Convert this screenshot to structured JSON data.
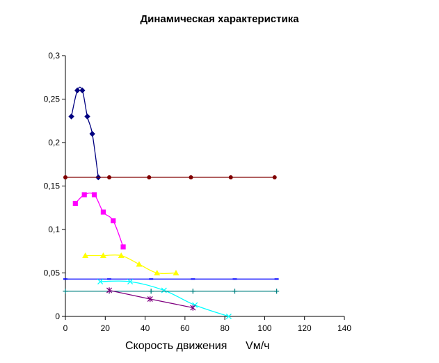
{
  "chart_data": {
    "type": "scatter",
    "title": "Динамическая характеристика",
    "xlabel": "Скорость движения      Vм/ч",
    "ylabel": "",
    "xlim": [
      0,
      140
    ],
    "ylim": [
      0,
      0.3
    ],
    "xticks": [
      "0",
      "20",
      "40",
      "60",
      "80",
      "100",
      "120",
      "140"
    ],
    "yticks": [
      "0",
      "0,05",
      "0,1",
      "0,15",
      "0,2",
      "0,25",
      "0,3"
    ],
    "grid": false,
    "legend": "none",
    "series": [
      {
        "color": "#000080",
        "marker": "diamond",
        "smooth": true,
        "x": [
          3,
          6,
          8.5,
          11,
          13.5,
          16.5
        ],
        "y": [
          0.23,
          0.26,
          0.26,
          0.23,
          0.21,
          0.16
        ]
      },
      {
        "color": "#800000",
        "marker": "circle",
        "smooth": false,
        "x": [
          0,
          22,
          42,
          63,
          83,
          105
        ],
        "y": [
          0.16,
          0.16,
          0.16,
          0.16,
          0.16,
          0.16
        ]
      },
      {
        "color": "#ff00ff",
        "marker": "square",
        "smooth": true,
        "x": [
          5,
          9.5,
          14.5,
          19,
          24,
          29
        ],
        "y": [
          0.13,
          0.14,
          0.14,
          0.12,
          0.11,
          0.08
        ]
      },
      {
        "color": "#ffff00",
        "marker": "triangle",
        "smooth": true,
        "x": [
          10,
          19,
          28,
          37,
          46,
          55.5
        ],
        "y": [
          0.07,
          0.07,
          0.07,
          0.06,
          0.05,
          0.05
        ]
      },
      {
        "color": "#0000ff",
        "marker": "dash",
        "smooth": false,
        "x": [
          0,
          22,
          43,
          64,
          85,
          106
        ],
        "y": [
          0.043,
          0.043,
          0.043,
          0.043,
          0.043,
          0.043
        ]
      },
      {
        "color": "#00ffff",
        "marker": "x",
        "smooth": true,
        "x": [
          17.5,
          32.5,
          49.5,
          65,
          82
        ],
        "y": [
          0.04,
          0.04,
          0.03,
          0.013,
          0
        ]
      },
      {
        "color": "#008080",
        "marker": "plus",
        "smooth": false,
        "x": [
          0,
          22,
          43,
          64,
          85,
          106
        ],
        "y": [
          0.029,
          0.029,
          0.029,
          0.029,
          0.029,
          0.029
        ]
      },
      {
        "color": "#800080",
        "marker": "star",
        "smooth": false,
        "x": [
          22,
          42.5,
          64
        ],
        "y": [
          0.03,
          0.02,
          0.01
        ]
      }
    ]
  }
}
